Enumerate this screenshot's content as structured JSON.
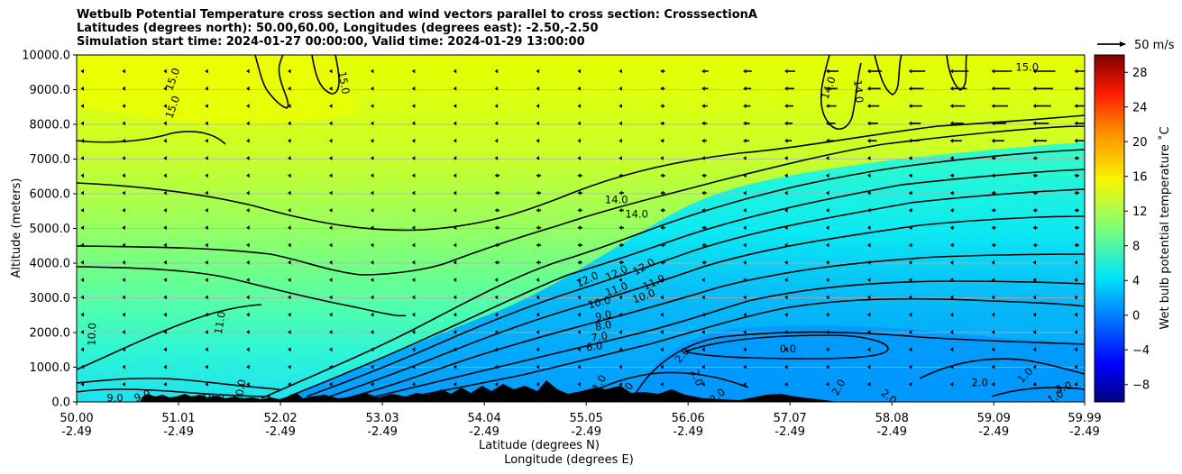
{
  "chart_data": {
    "type": "contour",
    "title_lines": [
      "Wetbulb Potential Temperature cross section and wind vectors parallel to cross section: CrosssectionA",
      "Latitudes (degrees north): 50.00,60.00, Longitudes (degrees east): -2.50,-2.50",
      "Simulation start time: 2024-01-27 00:00:00, Valid time: 2024-01-29 13:00:00"
    ],
    "ylabel": "Altitude (meters)",
    "xlabel_lines": [
      "Latitude (degrees N)",
      "Longitude (degrees E)"
    ],
    "ylim": [
      0,
      10000
    ],
    "y_ticks": [
      {
        "value": 0,
        "label": "0.0"
      },
      {
        "value": 1000,
        "label": "1000.0"
      },
      {
        "value": 2000,
        "label": "2000.0"
      },
      {
        "value": 3000,
        "label": "3000.0"
      },
      {
        "value": 4000,
        "label": "4000.0"
      },
      {
        "value": 5000,
        "label": "5000.0"
      },
      {
        "value": 6000,
        "label": "6000.0"
      },
      {
        "value": 7000,
        "label": "7000.0"
      },
      {
        "value": 8000,
        "label": "8000.0"
      },
      {
        "value": 9000,
        "label": "9000.0"
      },
      {
        "value": 10000,
        "label": "10000.0"
      }
    ],
    "xlim": [
      50.0,
      59.99
    ],
    "x_ticks": [
      {
        "lat": 50.0,
        "label": "50.00",
        "lon_label": "-2.49"
      },
      {
        "lat": 51.01,
        "label": "51.01",
        "lon_label": "-2.49"
      },
      {
        "lat": 52.02,
        "label": "52.02",
        "lon_label": "-2.49"
      },
      {
        "lat": 53.03,
        "label": "53.03",
        "lon_label": "-2.49"
      },
      {
        "lat": 54.04,
        "label": "54.04",
        "lon_label": "-2.49"
      },
      {
        "lat": 55.05,
        "label": "55.05",
        "lon_label": "-2.49"
      },
      {
        "lat": 56.06,
        "label": "56.06",
        "lon_label": "-2.49"
      },
      {
        "lat": 57.07,
        "label": "57.07",
        "lon_label": "-2.49"
      },
      {
        "lat": 58.08,
        "label": "58.08",
        "lon_label": "-2.49"
      },
      {
        "lat": 59.09,
        "label": "59.09",
        "lon_label": "-2.49"
      },
      {
        "lat": 59.99,
        "label": "59.99",
        "lon_label": "-2.49"
      }
    ],
    "grid": "horizontal",
    "colorbar": {
      "label": "Wet bulb potential temperature ˚C",
      "range": [
        -10,
        30
      ],
      "ticks": [
        {
          "value": -8,
          "label": "−8"
        },
        {
          "value": -4,
          "label": "−4"
        },
        {
          "value": 0,
          "label": "0"
        },
        {
          "value": 4,
          "label": "4"
        },
        {
          "value": 8,
          "label": "8"
        },
        {
          "value": 12,
          "label": "12"
        },
        {
          "value": 16,
          "label": "16"
        },
        {
          "value": 20,
          "label": "20"
        },
        {
          "value": 24,
          "label": "24"
        },
        {
          "value": 28,
          "label": "28"
        }
      ]
    },
    "quiver_key": {
      "label": "50 m/s"
    },
    "contour_labels": [
      {
        "text": "15.0",
        "lat": 50.95,
        "alt": 9300,
        "rot": -70
      },
      {
        "text": "15.0",
        "lat": 50.95,
        "alt": 8500,
        "rot": -70
      },
      {
        "text": "15.0",
        "lat": 52.65,
        "alt": 9200,
        "rot": 80
      },
      {
        "text": "14.0",
        "lat": 55.35,
        "alt": 5830,
        "rot": 0
      },
      {
        "text": "14.0",
        "lat": 55.55,
        "alt": 5420,
        "rot": 0
      },
      {
        "text": "14.0",
        "lat": 57.45,
        "alt": 9050,
        "rot": -70
      },
      {
        "text": "14.0",
        "lat": 57.75,
        "alt": 8950,
        "rot": 85
      },
      {
        "text": "15.0",
        "lat": 59.42,
        "alt": 9650,
        "rot": 0
      },
      {
        "text": "12.0",
        "lat": 55.06,
        "alt": 3530,
        "rot": -25
      },
      {
        "text": "12.0",
        "lat": 55.35,
        "alt": 3720,
        "rot": -25
      },
      {
        "text": "12.0",
        "lat": 55.62,
        "alt": 3900,
        "rot": -30
      },
      {
        "text": "11.0",
        "lat": 55.35,
        "alt": 3250,
        "rot": -20
      },
      {
        "text": "11.0",
        "lat": 55.72,
        "alt": 3450,
        "rot": -25
      },
      {
        "text": "10.0",
        "lat": 55.18,
        "alt": 2870,
        "rot": -15
      },
      {
        "text": "10.0",
        "lat": 55.62,
        "alt": 3050,
        "rot": -20
      },
      {
        "text": "9.0",
        "lat": 55.22,
        "alt": 2490,
        "rot": -12
      },
      {
        "text": "8.0",
        "lat": 55.22,
        "alt": 2200,
        "rot": -10
      },
      {
        "text": "7.0",
        "lat": 55.18,
        "alt": 1880,
        "rot": -8
      },
      {
        "text": "6.0",
        "lat": 55.13,
        "alt": 1600,
        "rot": -8
      },
      {
        "text": "2.0",
        "lat": 56.0,
        "alt": 1350,
        "rot": -50
      },
      {
        "text": "0.0",
        "lat": 57.05,
        "alt": 1530,
        "rot": 0
      },
      {
        "text": "10.0",
        "lat": 50.15,
        "alt": 1950,
        "rot": -88
      },
      {
        "text": "11.0",
        "lat": 51.42,
        "alt": 2280,
        "rot": -80
      },
      {
        "text": "9.0",
        "lat": 50.38,
        "alt": 120,
        "rot": 0
      },
      {
        "text": "9.0",
        "lat": 50.65,
        "alt": 180,
        "rot": -20
      },
      {
        "text": "10.0",
        "lat": 51.35,
        "alt": 120,
        "rot": 0
      },
      {
        "text": "10.0",
        "lat": 51.62,
        "alt": 320,
        "rot": -80
      },
      {
        "text": "1.0",
        "lat": 55.18,
        "alt": 550,
        "rot": -60
      },
      {
        "text": "2.0",
        "lat": 55.45,
        "alt": 330,
        "rot": -60
      },
      {
        "text": "2.0",
        "lat": 56.15,
        "alt": 700,
        "rot": 70
      },
      {
        "text": "2.0",
        "lat": 56.35,
        "alt": 180,
        "rot": -40
      },
      {
        "text": "2.0",
        "lat": 57.55,
        "alt": 420,
        "rot": -60
      },
      {
        "text": "2.0",
        "lat": 58.05,
        "alt": 150,
        "rot": 40
      },
      {
        "text": "2.0",
        "lat": 58.95,
        "alt": 560,
        "rot": 0
      },
      {
        "text": "1.0",
        "lat": 59.4,
        "alt": 770,
        "rot": -45
      },
      {
        "text": "3.0",
        "lat": 59.78,
        "alt": 420,
        "rot": -20
      },
      {
        "text": "1.0",
        "lat": 59.7,
        "alt": 150,
        "rot": -30
      }
    ]
  }
}
